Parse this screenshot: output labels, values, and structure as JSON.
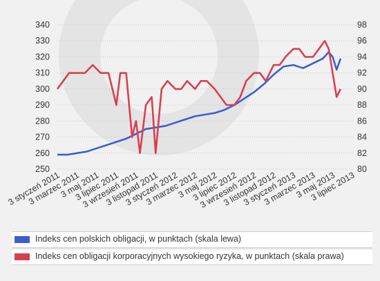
{
  "chart_data": {
    "type": "line",
    "title": "",
    "x_tick_labels": [
      "3 styczeń 2011",
      "3 marzec 2011",
      "3 maj 2011",
      "3 lipiec 2011",
      "3 wrzesień 2011",
      "3 listopad 2011",
      "3 styczeń 2012",
      "3 marzec 2012",
      "3 maj 2012",
      "3 lipiec 2012",
      "3 wrzesień 2012",
      "3 listopad 2012",
      "3 styczeń 2013",
      "3 marzec 2013",
      "3 maj 2013",
      "3 lipiec 2013"
    ],
    "y_left": {
      "min": 250,
      "max": 340,
      "ticks": [
        250,
        260,
        270,
        280,
        290,
        300,
        310,
        320,
        330,
        340
      ]
    },
    "y_right": {
      "min": 80,
      "max": 98,
      "ticks": [
        80,
        82,
        84,
        86,
        88,
        90,
        92,
        94,
        96,
        98
      ]
    },
    "grid": true,
    "legend_position": "bottom",
    "series": [
      {
        "name": "Indeks cen polskich obligacji, w punktach (skala lewa)",
        "axis": "left",
        "color": "#3a5fd0",
        "x": [
          0,
          0.5,
          1,
          1.5,
          2,
          2.5,
          3,
          3.5,
          4,
          4.5,
          5,
          5.5,
          6,
          6.5,
          7,
          7.5,
          8,
          8.5,
          9,
          9.5,
          10,
          10.5,
          11,
          11.5,
          12,
          12.5,
          13,
          13.5,
          13.8,
          14,
          14.2,
          14.4
        ],
        "values": [
          259,
          259,
          260,
          261,
          263,
          265,
          267,
          269,
          272,
          275,
          276,
          277,
          279,
          281,
          283,
          284,
          285,
          287,
          290,
          294,
          298,
          303,
          309,
          314,
          315,
          313,
          316,
          319,
          323,
          320,
          312,
          319
        ]
      },
      {
        "name": "Indeks cen obligacji korporacyjnych wysokiego ryzyka, w punktach (skala prawa)",
        "axis": "right",
        "color": "#d84050",
        "x": [
          0,
          0.3,
          0.6,
          1,
          1.4,
          1.8,
          2.2,
          2.6,
          3,
          3.2,
          3.5,
          3.8,
          4,
          4.2,
          4.5,
          4.8,
          5,
          5.3,
          5.6,
          6,
          6.3,
          6.6,
          7,
          7.3,
          7.6,
          8,
          8.3,
          8.6,
          9,
          9.3,
          9.6,
          10,
          10.3,
          10.6,
          11,
          11.3,
          11.6,
          12,
          12.3,
          12.6,
          13,
          13.3,
          13.6,
          13.8,
          14,
          14.2,
          14.4
        ],
        "values": [
          90,
          91,
          92,
          92,
          92,
          93,
          92,
          92,
          88,
          92,
          92,
          84,
          86,
          82,
          88,
          89,
          82,
          90,
          91,
          90,
          90,
          91,
          90,
          91,
          91,
          90,
          89,
          88,
          88,
          89,
          91,
          92,
          92,
          91,
          93,
          93,
          94,
          95,
          95,
          94,
          94,
          95,
          96,
          95,
          92,
          89,
          90
        ]
      }
    ]
  },
  "legend": {
    "items": [
      {
        "label": "Indeks cen polskich obligacji, w punktach (skala lewa)",
        "color": "#3a5fd0"
      },
      {
        "label": "Indeks cen obligacji korporacyjnych wysokiego ryzyka, w punktach (skala prawa)",
        "color": "#d84050"
      }
    ]
  }
}
